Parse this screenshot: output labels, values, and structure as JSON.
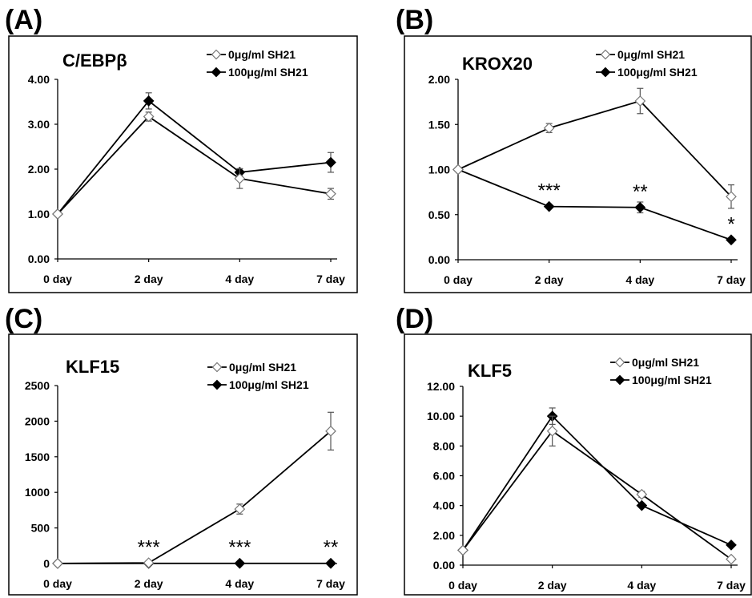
{
  "chart_data": [
    {
      "panel_label": "(A)",
      "type": "line",
      "title": "C/EBPβ",
      "categories": [
        "0 day",
        "2 day",
        "4 day",
        "7 day"
      ],
      "y_ticks": [
        "0.00",
        "1.00",
        "2.00",
        "3.00",
        "4.00"
      ],
      "ylim": [
        0,
        4
      ],
      "legend_position": "top-right",
      "series": [
        {
          "name": "0μg/ml SH21",
          "marker": "open-diamond",
          "values": [
            1.0,
            3.17,
            1.79,
            1.45
          ],
          "errors": [
            0,
            0.1,
            0.22,
            0.12
          ]
        },
        {
          "name": "100μg/ml SH21",
          "marker": "filled-diamond",
          "values": [
            1.0,
            3.52,
            1.93,
            2.15
          ],
          "errors": [
            0,
            0.18,
            0.08,
            0.22
          ]
        }
      ],
      "annotations": []
    },
    {
      "panel_label": "(B)",
      "type": "line",
      "title": "KROX20",
      "categories": [
        "0 day",
        "2 day",
        "4 day",
        "7 day"
      ],
      "y_ticks": [
        "0.00",
        "0.50",
        "1.00",
        "1.50",
        "2.00"
      ],
      "ylim": [
        0,
        2
      ],
      "legend_position": "top-right",
      "series": [
        {
          "name": "0μg/ml SH21",
          "marker": "open-diamond",
          "values": [
            1.0,
            1.46,
            1.76,
            0.7
          ],
          "errors": [
            0,
            0.05,
            0.14,
            0.13
          ]
        },
        {
          "name": "100μg/ml SH21",
          "marker": "filled-diamond",
          "values": [
            1.0,
            0.59,
            0.58,
            0.22
          ],
          "errors": [
            0,
            0,
            0.06,
            0
          ]
        }
      ],
      "annotations": [
        {
          "category": "2 day",
          "text": "***"
        },
        {
          "category": "4 day",
          "text": "**"
        },
        {
          "category": "7 day",
          "text": "*"
        }
      ]
    },
    {
      "panel_label": "(C)",
      "type": "line",
      "title": "KLF15",
      "categories": [
        "0 day",
        "2 day",
        "4 day",
        "7 day"
      ],
      "y_ticks": [
        "0",
        "500",
        "1000",
        "1500",
        "2000",
        "2500"
      ],
      "ylim": [
        0,
        2500
      ],
      "legend_position": "top-right",
      "series": [
        {
          "name": "0μg/ml SH21",
          "marker": "open-diamond",
          "values": [
            1,
            10,
            765,
            1860
          ],
          "errors": [
            0,
            0,
            70,
            265
          ]
        },
        {
          "name": "100μg/ml SH21",
          "marker": "filled-diamond",
          "values": [
            1,
            3,
            3,
            3
          ],
          "errors": [
            0,
            0,
            0,
            0
          ]
        }
      ],
      "annotations": [
        {
          "category": "2 day",
          "text": "***"
        },
        {
          "category": "4 day",
          "text": "***"
        },
        {
          "category": "7 day",
          "text": "**"
        }
      ]
    },
    {
      "panel_label": "(D)",
      "type": "line",
      "title": "KLF5",
      "categories": [
        "0 day",
        "2 day",
        "4 day",
        "7 day"
      ],
      "y_ticks": [
        "0.00",
        "2.00",
        "4.00",
        "6.00",
        "8.00",
        "10.00",
        "12.00"
      ],
      "ylim": [
        0,
        12
      ],
      "legend_position": "top-right",
      "series": [
        {
          "name": "0μg/ml SH21",
          "marker": "open-diamond",
          "values": [
            1.0,
            9.0,
            4.75,
            0.4
          ],
          "errors": [
            0,
            1.0,
            0.2,
            0.1
          ]
        },
        {
          "name": "100μg/ml SH21",
          "marker": "filled-diamond",
          "values": [
            1.0,
            10.0,
            4.0,
            1.35
          ],
          "errors": [
            0,
            0.55,
            0,
            0
          ]
        }
      ],
      "annotations": []
    }
  ]
}
